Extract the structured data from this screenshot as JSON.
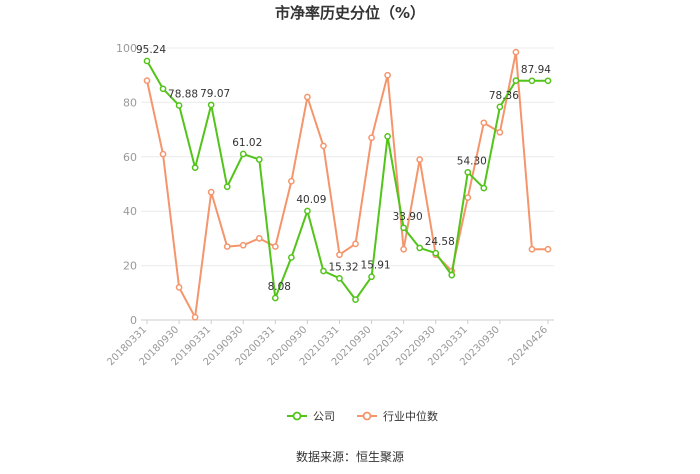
{
  "chart_data": {
    "type": "line",
    "title": "市净率历史分位（%）",
    "xlabel": "",
    "ylabel": "",
    "ylim": [
      0,
      100
    ],
    "y_ticks": [
      0,
      20,
      40,
      60,
      80,
      100
    ],
    "grid": true,
    "legend_position": "bottom",
    "x": [
      "20180331",
      "20180630",
      "20180930",
      "20181231",
      "20190331",
      "20190630",
      "20190930",
      "20191231",
      "20200331",
      "20200630",
      "20200930",
      "20201231",
      "20210331",
      "20210630",
      "20210930",
      "20211231",
      "20220331",
      "20220630",
      "20220930",
      "20221231",
      "20230331",
      "20230630",
      "20230930",
      "20231231",
      "20240331",
      "20240426"
    ],
    "x_tick_labels": [
      "20180331",
      "20180930",
      "20190331",
      "20190930",
      "20200331",
      "20200930",
      "20210331",
      "20210930",
      "20220331",
      "20220930",
      "20230331",
      "20230930",
      "20240426"
    ],
    "series": [
      {
        "name": "公司",
        "color": "#52c41a",
        "values": [
          95.24,
          85.0,
          78.88,
          56.0,
          79.07,
          49.0,
          61.02,
          59.0,
          8.08,
          23.0,
          40.09,
          18.0,
          15.32,
          7.5,
          15.91,
          67.5,
          33.9,
          26.5,
          24.58,
          16.5,
          54.3,
          48.5,
          78.36,
          88.0,
          87.94,
          87.94
        ],
        "labels": [
          {
            "index": 0,
            "text": "95.24"
          },
          {
            "index": 2,
            "text": "78.88"
          },
          {
            "index": 4,
            "text": "79.07"
          },
          {
            "index": 6,
            "text": "61.02"
          },
          {
            "index": 8,
            "text": "8.08"
          },
          {
            "index": 10,
            "text": "40.09"
          },
          {
            "index": 12,
            "text": "15.32"
          },
          {
            "index": 14,
            "text": "15.91"
          },
          {
            "index": 16,
            "text": "33.90"
          },
          {
            "index": 18,
            "text": "24.58"
          },
          {
            "index": 20,
            "text": "54.30"
          },
          {
            "index": 22,
            "text": "78.36"
          },
          {
            "index": 24,
            "text": "87.94"
          }
        ]
      },
      {
        "name": "行业中位数",
        "color": "#f5956c",
        "values": [
          88.0,
          61.0,
          12.0,
          1.0,
          47.0,
          27.0,
          27.5,
          30.0,
          27.0,
          51.0,
          82.0,
          64.0,
          24.0,
          28.0,
          67.0,
          90.0,
          26.0,
          59.0,
          24.0,
          18.0,
          45.0,
          72.5,
          69.0,
          98.5,
          26.0,
          26.0
        ]
      }
    ]
  },
  "source": "数据来源：恒生聚源"
}
